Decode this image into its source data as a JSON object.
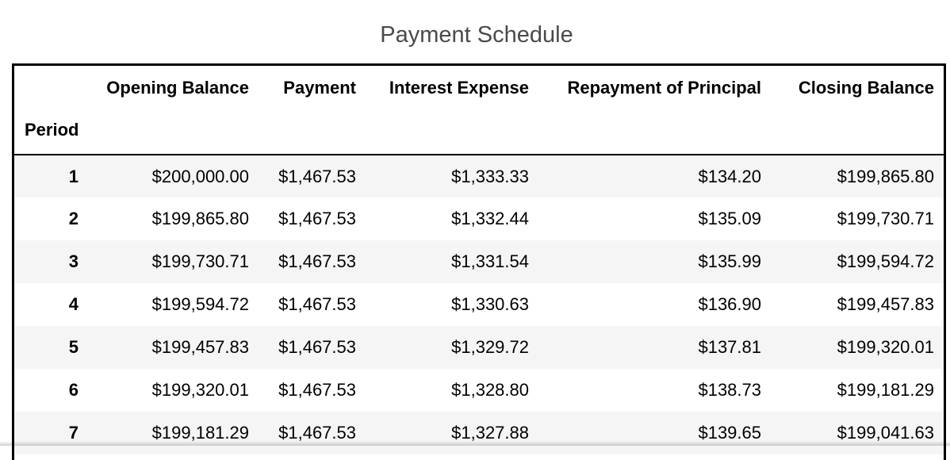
{
  "title": "Payment Schedule",
  "table": {
    "index_name": "Period",
    "columns": [
      "Opening Balance",
      "Payment",
      "Interest Expense",
      "Repayment of Principal",
      "Closing Balance"
    ],
    "rows": [
      {
        "period": "1",
        "cells": [
          "$200,000.00",
          "$1,467.53",
          "$1,333.33",
          "$134.20",
          "$199,865.80"
        ]
      },
      {
        "period": "2",
        "cells": [
          "$199,865.80",
          "$1,467.53",
          "$1,332.44",
          "$135.09",
          "$199,730.71"
        ]
      },
      {
        "period": "3",
        "cells": [
          "$199,730.71",
          "$1,467.53",
          "$1,331.54",
          "$135.99",
          "$199,594.72"
        ]
      },
      {
        "period": "4",
        "cells": [
          "$199,594.72",
          "$1,467.53",
          "$1,330.63",
          "$136.90",
          "$199,457.83"
        ]
      },
      {
        "period": "5",
        "cells": [
          "$199,457.83",
          "$1,467.53",
          "$1,329.72",
          "$137.81",
          "$199,320.01"
        ]
      },
      {
        "period": "6",
        "cells": [
          "$199,320.01",
          "$1,467.53",
          "$1,328.80",
          "$138.73",
          "$199,181.29"
        ]
      },
      {
        "period": "7",
        "cells": [
          "$199,181.29",
          "$1,467.53",
          "$1,327.88",
          "$139.65",
          "$199,041.63"
        ]
      }
    ]
  },
  "colors": {
    "title_text": "#4a4a4a",
    "striped_row": "#f5f5f5",
    "border": "#000000"
  }
}
